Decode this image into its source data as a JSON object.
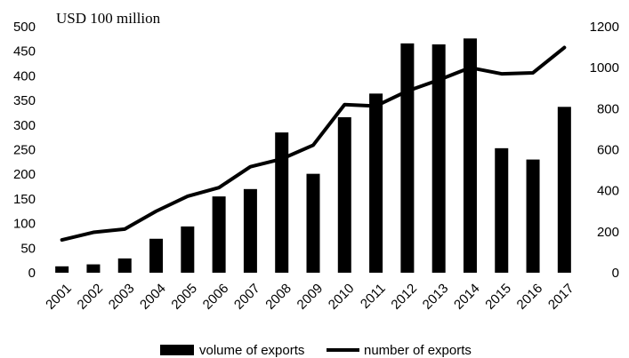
{
  "chart_data": {
    "type": "bar",
    "unit_label": "USD 100 million",
    "categories": [
      "2001",
      "2002",
      "2003",
      "2004",
      "2005",
      "2006",
      "2007",
      "2008",
      "2009",
      "2010",
      "2011",
      "2012",
      "2013",
      "2014",
      "2015",
      "2016",
      "2017"
    ],
    "series": [
      {
        "name": "volume of exports",
        "type": "bar",
        "axis": "left",
        "color": "#000000",
        "values": [
          13,
          17,
          29,
          69,
          94,
          155,
          170,
          285,
          201,
          316,
          364,
          466,
          464,
          476,
          253,
          230,
          337
        ]
      },
      {
        "name": "number of exports",
        "type": "line",
        "axis": "right",
        "color": "#000000",
        "values": [
          160,
          197,
          213,
          300,
          373,
          415,
          517,
          555,
          622,
          820,
          813,
          886,
          940,
          1000,
          970,
          975,
          1098
        ]
      }
    ],
    "y_left": {
      "min": 0,
      "max": 500,
      "ticks": [
        "0",
        "50",
        "100",
        "150",
        "200",
        "250",
        "300",
        "350",
        "400",
        "450",
        "500"
      ]
    },
    "y_right": {
      "min": 0,
      "max": 1200,
      "ticks": [
        "0",
        "200",
        "400",
        "600",
        "800",
        "1000",
        "1200"
      ]
    },
    "grid": false,
    "legend_position": "bottom"
  }
}
